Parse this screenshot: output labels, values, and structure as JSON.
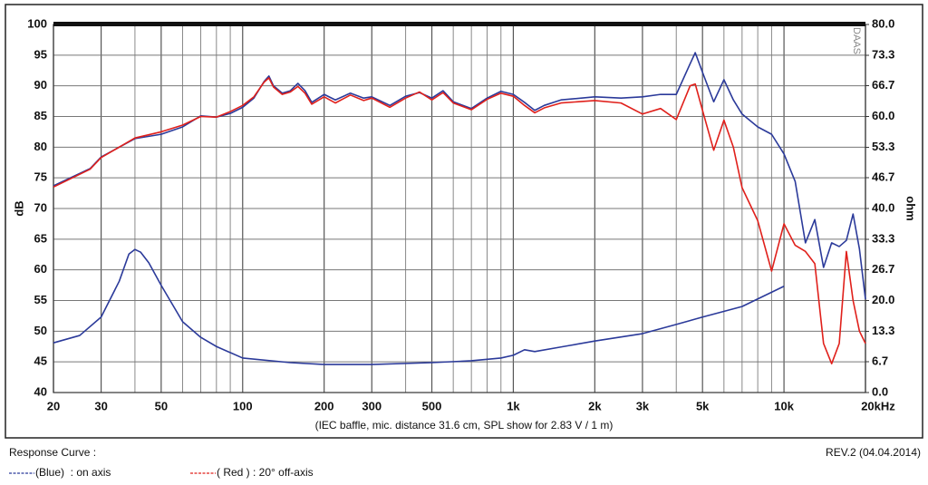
{
  "chart_data": {
    "type": "line",
    "x_log": true,
    "grid": true,
    "title": "(IEC baffle, mic. distance 31.6 cm, SPL show for 2.83 V / 1 m)",
    "y_label": "dB",
    "y2_label": "ohm",
    "watermark": "DAAS",
    "legend_title": "Response Curve :",
    "revision": "REV.2 (04.04.2014)",
    "xlim": [
      20,
      20000
    ],
    "ylim": [
      40,
      100
    ],
    "y2lim": [
      0,
      80
    ],
    "xticks": [
      20,
      30,
      50,
      100,
      200,
      300,
      500,
      {
        "value": 1000,
        "label": "1k"
      },
      {
        "value": 2000,
        "label": "2k"
      },
      {
        "value": 3000,
        "label": "3k"
      },
      {
        "value": 5000,
        "label": "5k"
      },
      {
        "value": 10000,
        "label": "10k"
      },
      {
        "value": 20000,
        "label": "20kHz"
      }
    ],
    "xgrid_minor": [
      40,
      60,
      70,
      80,
      90,
      400,
      600,
      700,
      800,
      900,
      4000,
      6000,
      7000,
      8000,
      9000
    ],
    "yticks": [
      40,
      45,
      50,
      55,
      60,
      65,
      70,
      75,
      80,
      85,
      90,
      95,
      100
    ],
    "y2ticks": [
      {
        "value": 0,
        "label": "0.0"
      },
      6.7,
      13.3,
      {
        "value": 20,
        "label": "20.0"
      },
      26.7,
      33.3,
      {
        "value": 40,
        "label": "40.0"
      },
      46.7,
      53.3,
      {
        "value": 60,
        "label": "60.0"
      },
      66.7,
      73.3,
      {
        "value": 80,
        "label": "80.0"
      }
    ],
    "series": [
      {
        "name": "(Blue)  : on axis",
        "color": "#2b3a9a",
        "x": [
          20,
          27.3,
          30,
          40,
          50,
          60,
          70,
          80,
          90,
          100,
          110,
          120,
          125,
          130,
          140,
          150,
          160,
          170,
          180,
          200,
          220,
          250,
          280,
          300,
          350,
          400,
          450,
          500,
          550,
          600,
          700,
          800,
          900,
          1000,
          1100,
          1200,
          1300,
          1500,
          2000,
          2500,
          3000,
          3500,
          4000,
          4500,
          4700,
          5000,
          5500,
          6000,
          6500,
          7000,
          8000,
          9000,
          10000,
          11000,
          12000,
          13000,
          14000,
          15000,
          16000,
          17000,
          18000,
          19000,
          20000
        ],
        "values": [
          73.7,
          76.5,
          78.4,
          81.4,
          82.1,
          83.3,
          85.1,
          84.9,
          85.5,
          86.5,
          88,
          90.7,
          91.6,
          90,
          88.8,
          89.2,
          90.4,
          89.2,
          87.3,
          88.6,
          87.7,
          88.8,
          88,
          88.2,
          86.8,
          88.3,
          88.9,
          88,
          89.2,
          87.4,
          86.3,
          88,
          89.1,
          88.6,
          87.3,
          86,
          86.8,
          87.7,
          88.2,
          88,
          88.2,
          88.6,
          88.6,
          93.6,
          95.4,
          92.2,
          87.4,
          91,
          87.7,
          85.4,
          83.3,
          82.1,
          78.9,
          74.4,
          64.4,
          68.2,
          60.4,
          64.4,
          63.8,
          64.8,
          69.1,
          63.4,
          55.2
        ]
      },
      {
        "name": "( Red ) : 20° off-axis",
        "color": "#e0201b",
        "x": [
          20,
          27.3,
          30,
          40,
          50,
          60,
          70,
          80,
          90,
          100,
          110,
          120,
          125,
          130,
          140,
          150,
          160,
          170,
          180,
          200,
          220,
          250,
          280,
          300,
          350,
          400,
          450,
          500,
          550,
          600,
          700,
          800,
          900,
          1000,
          1100,
          1200,
          1300,
          1500,
          2000,
          2500,
          3000,
          3500,
          4000,
          4500,
          4700,
          5000,
          5500,
          6000,
          6500,
          7000,
          8000,
          9000,
          10000,
          11000,
          12000,
          13000,
          14000,
          15000,
          16000,
          17000,
          18000,
          19000,
          20000
        ],
        "values": [
          73.5,
          76.4,
          78.3,
          81.5,
          82.5,
          83.6,
          85,
          84.9,
          85.8,
          86.8,
          88.2,
          90.6,
          91.3,
          89.8,
          88.6,
          89,
          89.9,
          88.8,
          87,
          88.2,
          87.2,
          88.5,
          87.6,
          88,
          86.5,
          88,
          89,
          87.7,
          88.9,
          87.2,
          86.1,
          87.8,
          88.8,
          88.3,
          86.8,
          85.6,
          86.4,
          87.2,
          87.6,
          87.2,
          85.4,
          86.3,
          84.5,
          90,
          90.3,
          86,
          79.5,
          84.4,
          80,
          73.4,
          68,
          59.8,
          67.5,
          64,
          63,
          61,
          48,
          44.7,
          48,
          63,
          55,
          50,
          48
        ]
      },
      {
        "color": "#2b3a9a",
        "axis": "y2",
        "x": [
          20,
          25,
          30,
          35,
          38,
          40,
          42,
          45,
          50,
          60,
          70,
          80,
          100,
          150,
          200,
          300,
          500,
          700,
          900,
          1000,
          1100,
          1200,
          1500,
          2000,
          3000,
          4000,
          5000,
          7000,
          10000
        ],
        "values": [
          10.8,
          12.4,
          16.4,
          24.2,
          30.1,
          31.1,
          30.5,
          28.2,
          23.3,
          15.4,
          12,
          10,
          7.5,
          6.5,
          6.1,
          6.1,
          6.5,
          6.9,
          7.5,
          8.1,
          9.3,
          8.9,
          9.9,
          11.2,
          12.8,
          14.8,
          16.4,
          18.7,
          23.1
        ]
      }
    ]
  }
}
